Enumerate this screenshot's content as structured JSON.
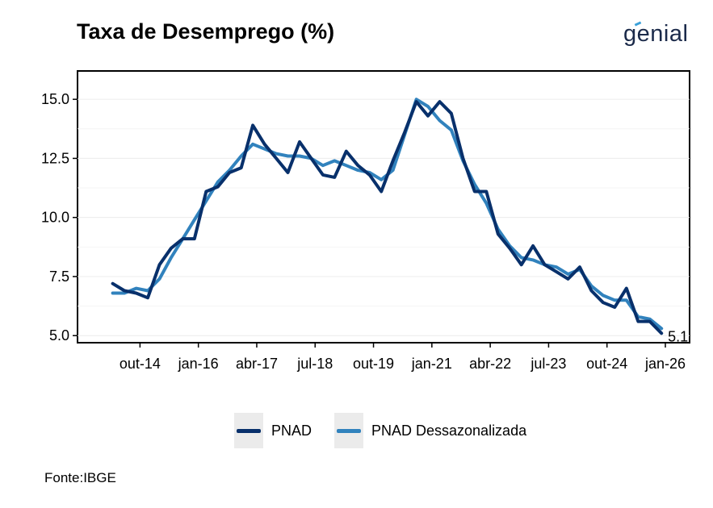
{
  "header": {
    "title": "Taxa de Desemprego (%)",
    "logo_text": "genial"
  },
  "footer": {
    "source": "Fonte:IBGE"
  },
  "chart_data": {
    "type": "line",
    "title": "Taxa de Desemprego (%)",
    "xlabel": "",
    "ylabel": "",
    "x_tick_labels": [
      "out-14",
      "jan-16",
      "abr-17",
      "jul-18",
      "out-19",
      "jan-21",
      "abr-22",
      "jul-23",
      "out-24",
      "jan-26"
    ],
    "y_tick_labels": [
      "5.0",
      "7.5",
      "10.0",
      "12.5",
      "15.0"
    ],
    "ylim": [
      4.7,
      16.2
    ],
    "x_range": [
      "2014-01",
      "2026-01"
    ],
    "grid": true,
    "legend_position": "bottom",
    "end_label": "5.1",
    "x": [
      "2014-03",
      "2014-06",
      "2014-09",
      "2014-12",
      "2015-03",
      "2015-06",
      "2015-09",
      "2015-12",
      "2016-03",
      "2016-06",
      "2016-09",
      "2016-12",
      "2017-03",
      "2017-06",
      "2017-09",
      "2017-12",
      "2018-03",
      "2018-06",
      "2018-09",
      "2018-12",
      "2019-03",
      "2019-06",
      "2019-09",
      "2019-12",
      "2020-03",
      "2020-06",
      "2020-09",
      "2020-12",
      "2021-03",
      "2021-06",
      "2021-09",
      "2021-12",
      "2022-03",
      "2022-06",
      "2022-09",
      "2022-12",
      "2023-03",
      "2023-06",
      "2023-09",
      "2023-12",
      "2024-03",
      "2024-06",
      "2024-09",
      "2024-12",
      "2025-03",
      "2025-06",
      "2025-09",
      "2025-12"
    ],
    "series": [
      {
        "name": "PNAD",
        "color": "#08306b",
        "values": [
          7.2,
          6.9,
          6.8,
          6.6,
          8.0,
          8.7,
          9.1,
          9.1,
          11.1,
          11.3,
          11.9,
          12.1,
          13.9,
          13.1,
          12.5,
          11.9,
          13.2,
          12.5,
          11.8,
          11.7,
          12.8,
          12.2,
          11.8,
          11.1,
          12.4,
          13.6,
          14.9,
          14.3,
          14.9,
          14.4,
          12.5,
          11.1,
          11.1,
          9.3,
          8.7,
          8.0,
          8.8,
          8.0,
          7.7,
          7.4,
          7.9,
          6.9,
          6.4,
          6.2,
          7.0,
          5.6,
          5.6,
          5.1
        ]
      },
      {
        "name": "PNAD Dessazonalizada",
        "color": "#3182bd",
        "values": [
          6.8,
          6.8,
          7.0,
          6.9,
          7.4,
          8.3,
          9.1,
          9.9,
          10.7,
          11.5,
          12.0,
          12.6,
          13.1,
          12.9,
          12.7,
          12.6,
          12.6,
          12.5,
          12.2,
          12.4,
          12.2,
          12.0,
          11.9,
          11.6,
          12.0,
          13.5,
          15.0,
          14.7,
          14.1,
          13.7,
          12.4,
          11.4,
          10.6,
          9.5,
          8.8,
          8.3,
          8.2,
          8.0,
          7.9,
          7.6,
          7.8,
          7.1,
          6.7,
          6.5,
          6.5,
          5.8,
          5.7,
          5.3
        ]
      }
    ]
  }
}
